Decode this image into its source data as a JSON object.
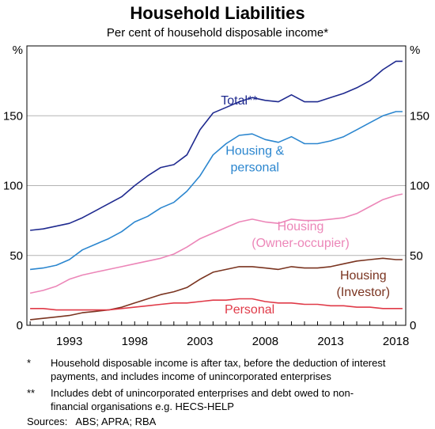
{
  "title": "Household Liabilities",
  "subtitle": "Per cent of household disposable income*",
  "footnotes": [
    {
      "mark": "*",
      "text": "Household disposable income is after tax, before the deduction of interest payments, and includes income of unincorporated enterprises"
    },
    {
      "mark": "**",
      "text": "Includes debt of unincorporated enterprises and debt owed to non-financial organisations e.g. HECS-HELP"
    }
  ],
  "sources": "Sources:   ABS; APRA; RBA",
  "chart_data": {
    "type": "line",
    "ylabel_left": "%",
    "ylabel_right": "%",
    "ylim": [
      0,
      200
    ],
    "xlim": [
      1989.75,
      2018.75
    ],
    "yticks": [
      0,
      50,
      100,
      150
    ],
    "xticks": [
      1993,
      1998,
      2003,
      2008,
      2013,
      2018
    ],
    "grid": true,
    "colors": {
      "total": "#1f2a8f",
      "housing_personal": "#2b86cf",
      "owner": "#ec86b8",
      "investor": "#7a3420",
      "personal": "#e03a48"
    },
    "series": [
      {
        "key": "total",
        "name": "Total**",
        "label_lines": [
          "Total**"
        ],
        "label_x": 2004.6,
        "label_y": 158,
        "label_align": "start",
        "x": [
          1990,
          1991,
          1992,
          1993,
          1994,
          1995,
          1996,
          1997,
          1998,
          1999,
          2000,
          2001,
          2002,
          2003,
          2004,
          2005,
          2006,
          2007,
          2008,
          2009,
          2010,
          2011,
          2012,
          2013,
          2014,
          2015,
          2016,
          2017,
          2018,
          2018.5
        ],
        "y": [
          68,
          69,
          71,
          73,
          77,
          82,
          87,
          92,
          100,
          107,
          113,
          115,
          122,
          140,
          152,
          156,
          160,
          163,
          161,
          160,
          165,
          160,
          160,
          163,
          166,
          170,
          175,
          183,
          189,
          189
        ]
      },
      {
        "key": "housing_personal",
        "name": "Housing & personal",
        "label_lines": [
          "Housing &",
          "personal"
        ],
        "label_x": 2007.2,
        "label_y": 122,
        "label_align": "middle",
        "x": [
          1990,
          1991,
          1992,
          1993,
          1994,
          1995,
          1996,
          1997,
          1998,
          1999,
          2000,
          2001,
          2002,
          2003,
          2004,
          2005,
          2006,
          2007,
          2008,
          2009,
          2010,
          2011,
          2012,
          2013,
          2014,
          2015,
          2016,
          2017,
          2018,
          2018.5
        ],
        "y": [
          40,
          41,
          43,
          47,
          54,
          58,
          62,
          67,
          74,
          78,
          84,
          88,
          96,
          107,
          122,
          130,
          136,
          137,
          133,
          131,
          135,
          130,
          130,
          132,
          135,
          140,
          145,
          150,
          153,
          153
        ]
      },
      {
        "key": "owner",
        "name": "Housing (Owner-occupier)",
        "label_lines": [
          "Housing",
          "(Owner-occupier)"
        ],
        "label_x": 2010.7,
        "label_y": 68,
        "label_align": "middle",
        "x": [
          1990,
          1991,
          1992,
          1993,
          1994,
          1995,
          1996,
          1997,
          1998,
          1999,
          2000,
          2001,
          2002,
          2003,
          2004,
          2005,
          2006,
          2007,
          2008,
          2009,
          2010,
          2011,
          2012,
          2013,
          2014,
          2015,
          2016,
          2017,
          2018,
          2018.5
        ],
        "y": [
          23,
          25,
          28,
          33,
          36,
          38,
          40,
          42,
          44,
          46,
          48,
          51,
          56,
          62,
          66,
          70,
          74,
          76,
          74,
          73,
          76,
          75,
          75,
          76,
          77,
          80,
          85,
          90,
          93,
          94
        ]
      },
      {
        "key": "investor",
        "name": "Housing (Investor)",
        "label_lines": [
          "Housing",
          "(Investor)"
        ],
        "label_x": 2015.5,
        "label_y": 33,
        "label_align": "middle",
        "x": [
          1990,
          1991,
          1992,
          1993,
          1994,
          1995,
          1996,
          1997,
          1998,
          1999,
          2000,
          2001,
          2002,
          2003,
          2004,
          2005,
          2006,
          2007,
          2008,
          2009,
          2010,
          2011,
          2012,
          2013,
          2014,
          2015,
          2016,
          2017,
          2018,
          2018.5
        ],
        "y": [
          4,
          5,
          6,
          7,
          9,
          10,
          11,
          13,
          16,
          19,
          22,
          24,
          27,
          33,
          38,
          40,
          42,
          42,
          41,
          40,
          42,
          41,
          41,
          42,
          44,
          46,
          47,
          48,
          47,
          47
        ]
      },
      {
        "key": "personal",
        "name": "Personal",
        "label_lines": [
          "Personal"
        ],
        "label_x": 2006.8,
        "label_y": 8.5,
        "label_align": "middle",
        "x": [
          1990,
          1991,
          1992,
          1993,
          1994,
          1995,
          1996,
          1997,
          1998,
          1999,
          2000,
          2001,
          2002,
          2003,
          2004,
          2005,
          2006,
          2007,
          2008,
          2009,
          2010,
          2011,
          2012,
          2013,
          2014,
          2015,
          2016,
          2017,
          2018,
          2018.5
        ],
        "y": [
          12,
          12,
          11,
          11,
          11,
          11,
          11,
          12,
          13,
          14,
          15,
          16,
          16,
          17,
          18,
          18,
          19,
          19,
          17,
          16,
          16,
          15,
          15,
          14,
          14,
          13,
          13,
          12,
          12,
          12
        ]
      }
    ]
  }
}
